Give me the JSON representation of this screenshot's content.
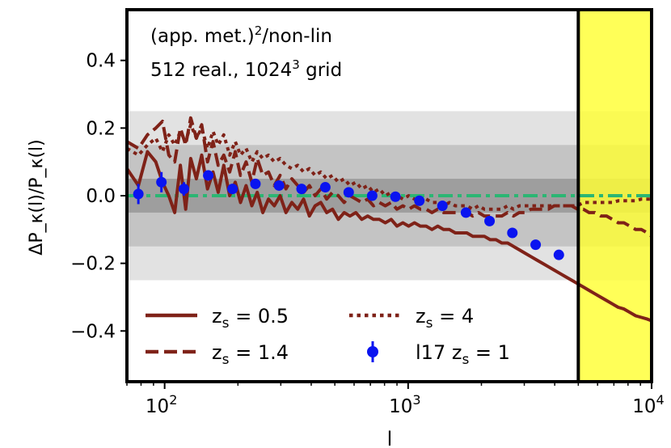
{
  "chart_data": {
    "type": "line",
    "title": "",
    "annotation_line1": "(app. met.)",
    "annotation_line1_sup": "2",
    "annotation_line1_tail": "/non-lin",
    "annotation_line2": "512 real., 1024",
    "annotation_line2_sup": "3",
    "annotation_line2_tail": " grid",
    "xlabel": "l",
    "ylabel": "ΔP_κ(l)/P_κ(l)",
    "xscale": "log",
    "xlim": [
      70,
      10000
    ],
    "ylim": [
      -0.55,
      0.55
    ],
    "x_ticks": [
      {
        "value": 100,
        "base": "10",
        "exp": "2"
      },
      {
        "value": 1000,
        "base": "10",
        "exp": "3"
      },
      {
        "value": 10000,
        "base": "10",
        "exp": "4"
      }
    ],
    "y_ticks": [
      {
        "value": 0.4,
        "label": "0.4"
      },
      {
        "value": 0.2,
        "label": "0.2"
      },
      {
        "value": 0.0,
        "label": "0.0"
      },
      {
        "value": -0.2,
        "label": "−0.2"
      },
      {
        "value": -0.4,
        "label": "−0.4"
      }
    ],
    "bands": [
      {
        "y0": -0.25,
        "y1": 0.25,
        "color": "#e2e2e2"
      },
      {
        "y0": -0.15,
        "y1": 0.15,
        "color": "#c4c4c4"
      },
      {
        "y0": -0.05,
        "y1": 0.05,
        "color": "#9e9e9e"
      }
    ],
    "highlight_region": {
      "x0": 5000,
      "x1": 10000,
      "color": "#ffff33"
    },
    "reference_line": {
      "y": 0,
      "color": "#2bb673"
    },
    "series": [
      {
        "name": "z_s = 0.5",
        "legend_label": "z",
        "legend_sub": "s",
        "legend_value": " = 0.5",
        "style": "solid",
        "color": "#7f2218",
        "x": [
          70,
          78,
          85,
          92,
          98,
          104,
          110,
          116,
          122,
          128,
          135,
          142,
          150,
          158,
          166,
          175,
          185,
          195,
          205,
          216,
          228,
          240,
          253,
          267,
          282,
          298,
          315,
          333,
          352,
          372,
          393,
          415,
          438,
          463,
          489,
          517,
          546,
          577,
          610,
          645,
          682,
          721,
          762,
          806,
          852,
          900,
          951,
          1005,
          1062,
          1122,
          1186,
          1253,
          1324,
          1399,
          1478,
          1562,
          1650,
          1743,
          1842,
          1946,
          2056,
          2172,
          2295,
          2425,
          2562,
          2707,
          2860,
          3022,
          3193,
          3374,
          3565,
          3767,
          3980,
          4205,
          4443,
          4694,
          4960,
          5240,
          5536,
          5850,
          6180,
          6530,
          6900,
          7290,
          7700,
          8140,
          8600,
          9080,
          9600,
          10000
        ],
        "y": [
          0.08,
          0.03,
          0.13,
          0.1,
          0.04,
          0.0,
          -0.05,
          0.09,
          -0.04,
          0.11,
          0.05,
          0.12,
          0.02,
          0.07,
          0.01,
          0.09,
          0.0,
          0.04,
          -0.02,
          0.03,
          -0.03,
          0.01,
          -0.05,
          -0.01,
          -0.03,
          0.0,
          -0.05,
          -0.02,
          -0.04,
          -0.01,
          -0.06,
          -0.03,
          -0.02,
          -0.05,
          -0.04,
          -0.07,
          -0.05,
          -0.06,
          -0.05,
          -0.07,
          -0.06,
          -0.07,
          -0.07,
          -0.08,
          -0.07,
          -0.09,
          -0.08,
          -0.09,
          -0.08,
          -0.09,
          -0.09,
          -0.1,
          -0.09,
          -0.1,
          -0.1,
          -0.11,
          -0.11,
          -0.11,
          -0.12,
          -0.12,
          -0.12,
          -0.13,
          -0.13,
          -0.14,
          -0.14,
          -0.15,
          -0.16,
          -0.17,
          -0.18,
          -0.19,
          -0.2,
          -0.21,
          -0.22,
          -0.23,
          -0.24,
          -0.25,
          -0.26,
          -0.27,
          -0.28,
          -0.29,
          -0.3,
          -0.31,
          -0.32,
          -0.33,
          -0.335,
          -0.345,
          -0.355,
          -0.36,
          -0.365,
          -0.37
        ]
      },
      {
        "name": "z_s = 1.4",
        "legend_label": "z",
        "legend_sub": "s",
        "legend_value": " = 1.4",
        "style": "dashed",
        "color": "#7f2218",
        "x": [
          70,
          78,
          85,
          92,
          98,
          104,
          110,
          116,
          122,
          128,
          135,
          142,
          150,
          158,
          166,
          175,
          185,
          195,
          205,
          216,
          228,
          240,
          253,
          267,
          282,
          298,
          315,
          333,
          352,
          372,
          393,
          415,
          438,
          463,
          489,
          517,
          546,
          577,
          610,
          645,
          682,
          721,
          762,
          806,
          852,
          900,
          951,
          1005,
          1062,
          1122,
          1186,
          1253,
          1324,
          1399,
          1478,
          1562,
          1650,
          1743,
          1842,
          1946,
          2056,
          2172,
          2295,
          2425,
          2562,
          2707,
          2860,
          3022,
          3193,
          3374,
          3565,
          3767,
          3980,
          4205,
          4443,
          4694,
          4960,
          5240,
          5536,
          5850,
          6180,
          6530,
          6900,
          7290,
          7700,
          8140,
          8600,
          9080,
          9600,
          10000
        ],
        "y": [
          0.16,
          0.14,
          0.18,
          0.2,
          0.22,
          0.12,
          0.1,
          0.2,
          0.15,
          0.23,
          0.17,
          0.21,
          0.1,
          0.16,
          0.09,
          0.12,
          0.07,
          0.13,
          0.06,
          0.1,
          0.04,
          0.11,
          0.06,
          0.07,
          0.03,
          0.06,
          0.02,
          0.05,
          0.03,
          0.01,
          0.03,
          0.0,
          0.02,
          -0.01,
          0.01,
          0.0,
          -0.02,
          0.0,
          -0.01,
          -0.02,
          -0.01,
          -0.03,
          -0.02,
          -0.03,
          -0.02,
          -0.04,
          -0.03,
          -0.04,
          -0.03,
          -0.04,
          -0.04,
          -0.05,
          -0.04,
          -0.05,
          -0.05,
          -0.05,
          -0.05,
          -0.05,
          -0.06,
          -0.05,
          -0.06,
          -0.06,
          -0.06,
          -0.06,
          -0.05,
          -0.06,
          -0.05,
          -0.05,
          -0.04,
          -0.04,
          -0.04,
          -0.04,
          -0.03,
          -0.03,
          -0.03,
          -0.03,
          -0.04,
          -0.04,
          -0.05,
          -0.05,
          -0.06,
          -0.06,
          -0.07,
          -0.08,
          -0.08,
          -0.09,
          -0.1,
          -0.1,
          -0.11,
          -0.12
        ]
      },
      {
        "name": "z_s = 4",
        "legend_label": "z",
        "legend_sub": "s",
        "legend_value": " = 4",
        "style": "dotted",
        "color": "#7f2218",
        "x": [
          70,
          78,
          85,
          92,
          98,
          104,
          110,
          116,
          122,
          128,
          135,
          142,
          150,
          158,
          166,
          175,
          185,
          195,
          205,
          216,
          228,
          240,
          253,
          267,
          282,
          298,
          315,
          333,
          352,
          372,
          393,
          415,
          438,
          463,
          489,
          517,
          546,
          577,
          610,
          645,
          682,
          721,
          762,
          806,
          852,
          900,
          951,
          1005,
          1062,
          1122,
          1186,
          1253,
          1324,
          1399,
          1478,
          1562,
          1650,
          1743,
          1842,
          1946,
          2056,
          2172,
          2295,
          2425,
          2562,
          2707,
          2860,
          3022,
          3193,
          3374,
          3565,
          3767,
          3980,
          4205,
          4443,
          4694,
          4960,
          5240,
          5536,
          5850,
          6180,
          6530,
          6900,
          7290,
          7700,
          8140,
          8600,
          9080,
          9600,
          10000
        ],
        "y": [
          0.14,
          0.12,
          0.15,
          0.17,
          0.13,
          0.18,
          0.15,
          0.19,
          0.16,
          0.21,
          0.17,
          0.2,
          0.14,
          0.19,
          0.15,
          0.18,
          0.12,
          0.16,
          0.12,
          0.14,
          0.1,
          0.13,
          0.11,
          0.12,
          0.1,
          0.11,
          0.09,
          0.08,
          0.09,
          0.07,
          0.08,
          0.06,
          0.07,
          0.05,
          0.06,
          0.04,
          0.05,
          0.03,
          0.04,
          0.02,
          0.03,
          0.01,
          0.02,
          0.0,
          0.01,
          0.0,
          -0.01,
          0.0,
          -0.01,
          -0.02,
          -0.01,
          -0.02,
          -0.02,
          -0.03,
          -0.02,
          -0.03,
          -0.03,
          -0.03,
          -0.04,
          -0.03,
          -0.04,
          -0.04,
          -0.04,
          -0.04,
          -0.03,
          -0.04,
          -0.03,
          -0.03,
          -0.03,
          -0.03,
          -0.03,
          -0.03,
          -0.03,
          -0.03,
          -0.03,
          -0.03,
          -0.03,
          -0.02,
          -0.02,
          -0.02,
          -0.02,
          -0.02,
          -0.02,
          -0.015,
          -0.015,
          -0.015,
          -0.015,
          -0.01,
          -0.01,
          -0.01
        ]
      }
    ],
    "points": {
      "name": "l17 z_s = 1",
      "legend_label": "l17 z",
      "legend_sub": "s",
      "legend_value": " = 1",
      "color": "#0a14f0",
      "x": [
        78,
        97,
        120,
        151,
        190,
        236,
        295,
        365,
        457,
        570,
        712,
        887,
        1112,
        1383,
        1728,
        2160,
        2680,
        3340,
        4160
      ],
      "y": [
        0.005,
        0.04,
        0.02,
        0.06,
        0.02,
        0.035,
        0.03,
        0.02,
        0.025,
        0.01,
        0.0,
        -0.003,
        -0.015,
        -0.03,
        -0.05,
        -0.075,
        -0.11,
        -0.145,
        -0.175
      ],
      "err": [
        0.03,
        0.03,
        0.02,
        0.015,
        0.01,
        0.01,
        0.008,
        0.006,
        0.005,
        0.004,
        0.004,
        0.003,
        0.003,
        0.003,
        0.003,
        0.003,
        0.003,
        0.003,
        0.003
      ]
    },
    "legend_location": "lower-left"
  }
}
